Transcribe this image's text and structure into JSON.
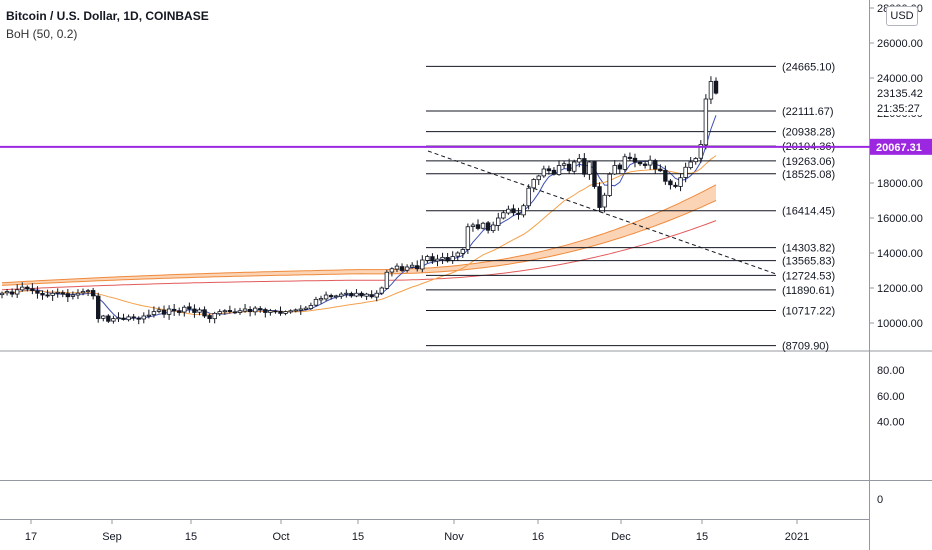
{
  "header": {
    "symbol_line": "Bitcoin / U.S. Dollar, 1D, COINBASE",
    "indicator_line": "BoH (50, 0.2)"
  },
  "price_scale": {
    "currency_button": "USD",
    "ticks": [
      "28000.00",
      "26000.00",
      "24000.00",
      "22000.00",
      "20000.00",
      "18000.00",
      "16000.00",
      "14000.00",
      "12000.00",
      "10000.00"
    ],
    "last_price": "23135.42",
    "countdown": "21:35:27",
    "marked_price": "20067.31",
    "marked_color": "#9c27e0"
  },
  "oscillator_scale": {
    "ticks": [
      "80.00",
      "60.00",
      "40.00",
      "0"
    ]
  },
  "time_axis": {
    "labels": [
      "17",
      "Sep",
      "15",
      "Oct",
      "15",
      "Nov",
      "16",
      "Dec",
      "15",
      "2021"
    ]
  },
  "fib_levels": [
    "(24665.10)",
    "(22111.67)",
    "(20938.28)",
    "(20104.36)",
    "(19263.06)",
    "(18525.08)",
    "(16414.45)",
    "(14303.82)",
    "(13565.83)",
    "(12724.53)",
    "(11890.61)",
    "(10717.22)",
    "(8709.90)"
  ],
  "chart_data": {
    "type": "candlestick",
    "symbol": "Bitcoin / U.S. Dollar",
    "interval": "1D",
    "exchange": "COINBASE",
    "indicator": "BoH (50, 0.2)",
    "y_range": [
      8700,
      28000
    ],
    "fib_levels": [
      24665.1,
      22111.67,
      20938.28,
      20104.36,
      19263.06,
      18525.08,
      16414.45,
      14303.82,
      13565.83,
      12724.53,
      11890.61,
      10717.22,
      8709.9
    ],
    "horizontal_line": 20067.31,
    "last_price": 23135.42,
    "closes": [
      11700,
      11800,
      11650,
      11900,
      12050,
      11950,
      11850,
      11700,
      11600,
      11550,
      11700,
      11750,
      11650,
      11500,
      11600,
      11700,
      11800,
      11850,
      11550,
      10250,
      10400,
      10100,
      10250,
      10300,
      10200,
      10350,
      10300,
      10250,
      10400,
      10450,
      10650,
      10750,
      10500,
      10800,
      10700,
      10600,
      10900,
      10800,
      10600,
      10750,
      10400,
      10250,
      10550,
      10650,
      10700,
      10650,
      10600,
      10700,
      10800,
      10650,
      10850,
      10750,
      10600,
      10700,
      10650,
      10550,
      10650,
      10700,
      10750,
      10800,
      10850,
      11000,
      11350,
      11400,
      11600,
      11500,
      11550,
      11650,
      11700,
      11550,
      11700,
      11550,
      11650,
      11500,
      11700,
      12000,
      12900,
      13100,
      13250,
      13000,
      13200,
      13300,
      13100,
      13600,
      13800,
      13550,
      13650,
      13750,
      13550,
      13800,
      14000,
      14200,
      15500,
      15600,
      15400,
      15700,
      15300,
      15600,
      16000,
      16300,
      16500,
      16300,
      16200,
      16700,
      17700,
      18200,
      18400,
      18800,
      18700,
      18500,
      19000,
      19100,
      18700,
      19200,
      19400,
      18500,
      19200,
      17800,
      16600,
      17300,
      18500,
      19000,
      18800,
      19500,
      19400,
      19200,
      19100,
      19000,
      19300,
      18800,
      18700,
      18100,
      17900,
      17800,
      18300,
      18900,
      19200,
      19400,
      20200,
      22800,
      23800,
      23135.42
    ],
    "ribbon_upper_ends": [
      12300,
      17900
    ],
    "ribbon_lower_ends": [
      12150,
      17000
    ],
    "xlabel": "",
    "ylabel": ""
  }
}
